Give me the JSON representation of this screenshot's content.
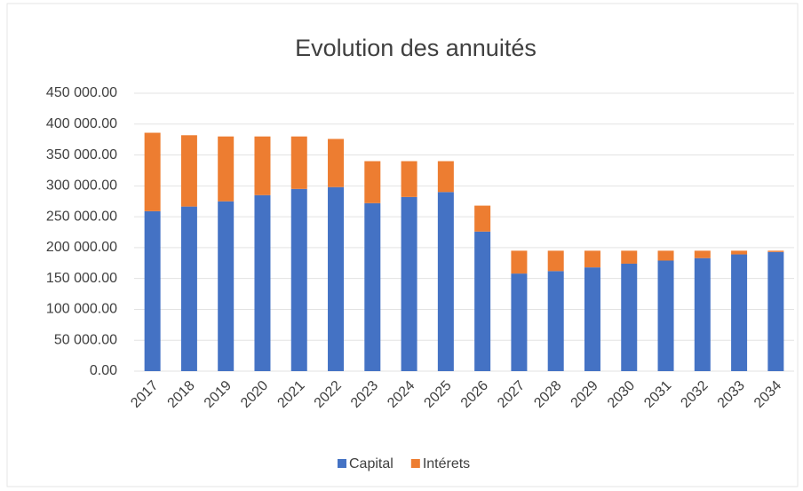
{
  "chart_data": {
    "type": "stacked_bar",
    "title": "Evolution des annuités",
    "categories": [
      "2017",
      "2018",
      "2019",
      "2020",
      "2021",
      "2022",
      "2023",
      "2024",
      "2025",
      "2026",
      "2027",
      "2028",
      "2029",
      "2030",
      "2031",
      "2032",
      "2033",
      "2034"
    ],
    "series": [
      {
        "name": "Capital",
        "color": "#4472c4",
        "values": [
          259000,
          266500,
          275000,
          285000,
          295000,
          298000,
          272000,
          282000,
          290000,
          226000,
          158000,
          162000,
          168000,
          174000,
          179000,
          183000,
          189000,
          193000
        ]
      },
      {
        "name": "Intérets",
        "color": "#ed7d31",
        "values": [
          127000,
          115500,
          105000,
          95000,
          85000,
          78000,
          68000,
          58000,
          50000,
          42000,
          37000,
          33000,
          27000,
          21000,
          16000,
          12000,
          6000,
          2000
        ]
      }
    ],
    "ylim": [
      0,
      450000
    ],
    "yticks": [
      {
        "value": 0,
        "label": "0.00"
      },
      {
        "value": 50000,
        "label": "50 000.00"
      },
      {
        "value": 100000,
        "label": "100 000.00"
      },
      {
        "value": 150000,
        "label": "150 000.00"
      },
      {
        "value": 200000,
        "label": "200 000.00"
      },
      {
        "value": 250000,
        "label": "250 000.00"
      },
      {
        "value": 300000,
        "label": "300 000.00"
      },
      {
        "value": 350000,
        "label": "350 000.00"
      },
      {
        "value": 400000,
        "label": "400 000.00"
      },
      {
        "value": 450000,
        "label": "450 000.00"
      }
    ],
    "grid": true,
    "legend": "bottom"
  }
}
